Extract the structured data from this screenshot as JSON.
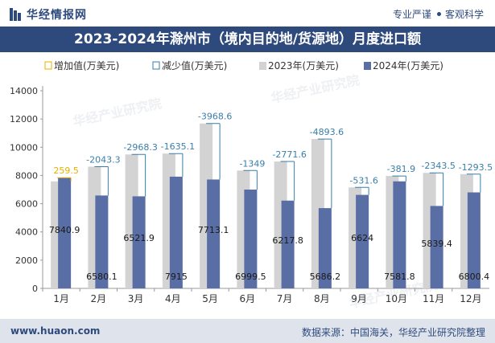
{
  "header": {
    "brand": "华经情报网",
    "tagline_left": "专业严谨",
    "tagline_right": "客观科学"
  },
  "footer": {
    "website": "www.huaon.com",
    "source": "数据来源：中国海关，华经产业研究院整理"
  },
  "watermark": "华经产业研究院",
  "colors": {
    "brand_blue": "#2e4a7d",
    "bar_2023": "#d3d3d3",
    "bar_2024": "#5a6ea6",
    "increase": "#e8b000",
    "decrease": "#3a7ea8"
  },
  "chart_data": {
    "type": "bar",
    "title": "2023-2024年滁州市（境内目的地/货源地）月度进口额",
    "categories": [
      "1月",
      "2月",
      "3月",
      "4月",
      "5月",
      "6月",
      "7月",
      "8月",
      "9月",
      "10月",
      "11月",
      "12月"
    ],
    "series": [
      {
        "name": "2023年(万美元)",
        "values": [
          7581.4,
          8623.4,
          9490.2,
          9550.1,
          11681.7,
          8348.5,
          8989.4,
          10580.1,
          7155.6,
          7963.7,
          8182.9,
          8093.9
        ]
      },
      {
        "name": "2024年(万美元)",
        "values": [
          7840.9,
          6580.1,
          6521.9,
          7915,
          7713.1,
          6999.5,
          6217.8,
          5686.2,
          6624,
          7581.8,
          5839.4,
          6800.4
        ]
      }
    ],
    "changes": [
      259.5,
      -2043.3,
      -2968.3,
      -1635.1,
      -3968.6,
      -1349,
      -2771.6,
      -4893.6,
      -531.6,
      -381.9,
      -2343.5,
      -1293.5
    ],
    "change_labels": [
      "259.5",
      "-2043.3",
      "-2968.3",
      "-1635.1",
      "-3968.6",
      "-1349",
      "-2771.6",
      "-4893.6",
      "-531.6",
      "-381.9",
      "-2343.5",
      "-1293.5"
    ],
    "value_labels_2024": [
      "7840.9",
      "6580.1",
      "6521.9",
      "7915",
      "7713.1",
      "6999.5",
      "6217.8",
      "5686.2",
      "6624",
      "7581.8",
      "5839.4",
      "6800.4"
    ],
    "legend": [
      "增加值(万美元)",
      "减少值(万美元)",
      "2023年(万美元)",
      "2024年(万美元)"
    ],
    "legend_position": "top-left",
    "y_ticks": [
      0,
      2000,
      4000,
      6000,
      8000,
      10000,
      12000,
      14000
    ],
    "ylim": [
      0,
      14000
    ],
    "grid": false
  }
}
